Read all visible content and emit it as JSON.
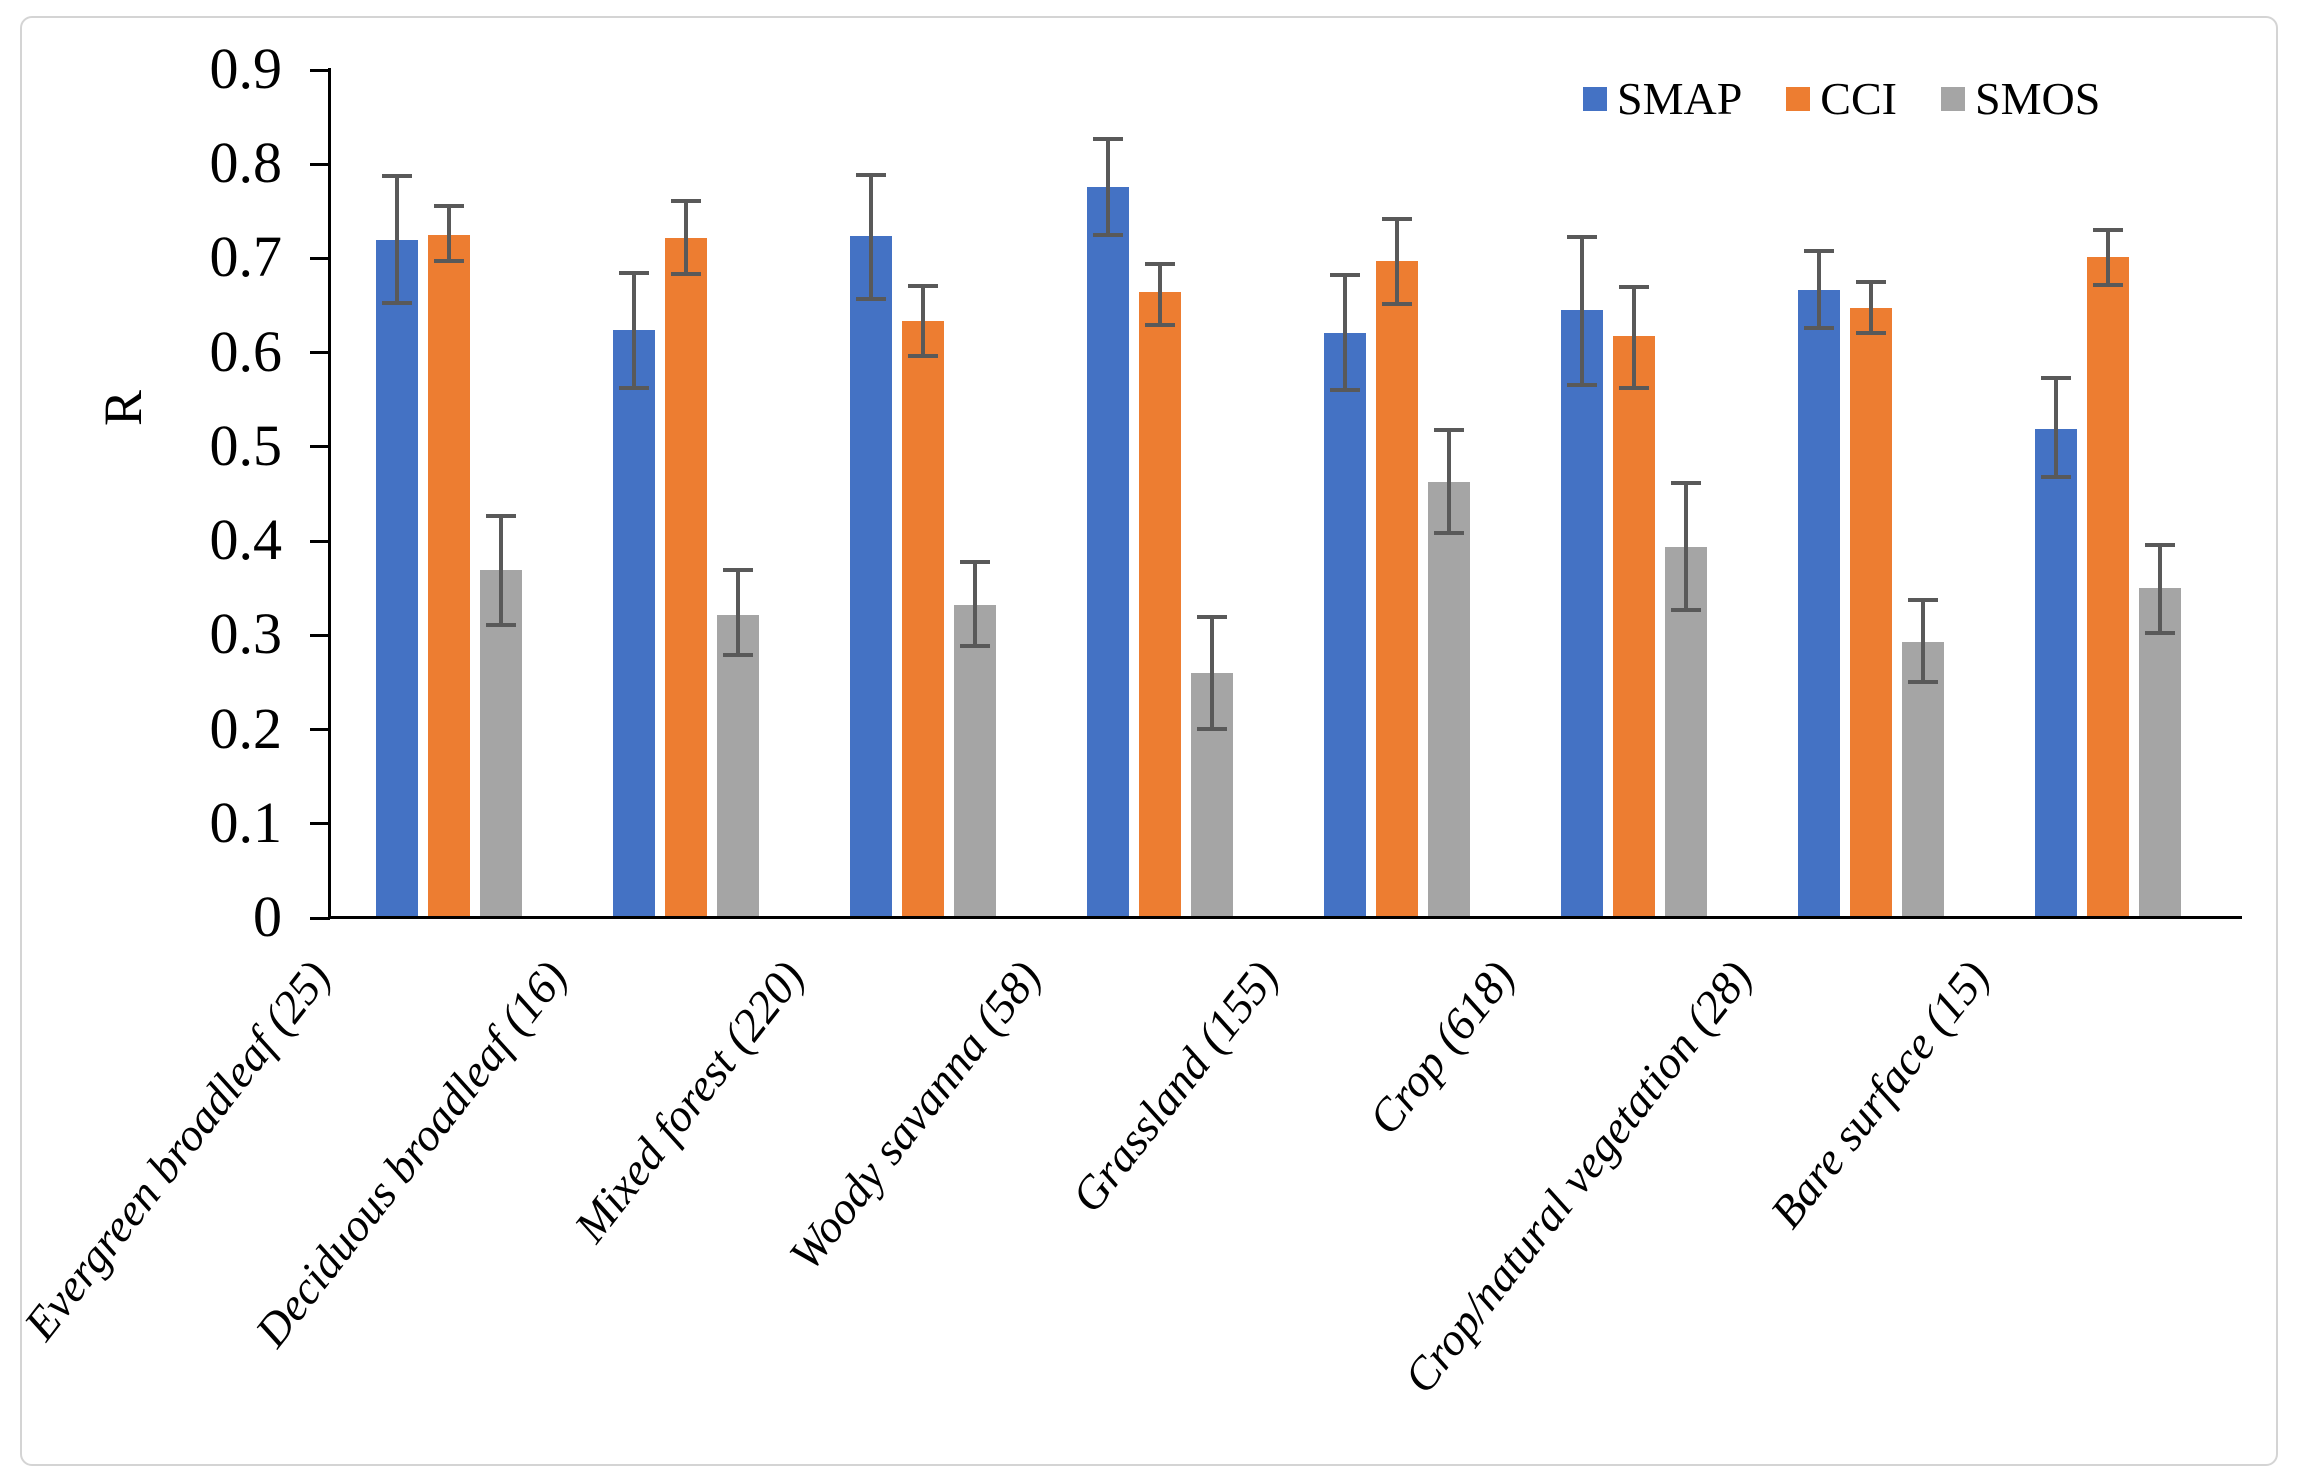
{
  "figure": {
    "background": "#ffffff",
    "border_color": "#d4d4d4",
    "axis_color": "#000000",
    "error_bar_color": "#595959"
  },
  "chart_data": {
    "type": "bar",
    "title": "",
    "xlabel": "",
    "ylabel": "R",
    "ylim": [
      0,
      0.9
    ],
    "ytick_step": 0.1,
    "ytick_labels": [
      "0",
      "0.1",
      "0.2",
      "0.3",
      "0.4",
      "0.5",
      "0.6",
      "0.7",
      "0.8",
      "0.9"
    ],
    "grid": false,
    "legend_position": "top-right",
    "bar_unit": "correlation coefficient R",
    "categories": [
      "Evergreen broadleaf (25)",
      "Deciduous broadleaf (16)",
      "Mixed forest (220)",
      "Woody savanna (58)",
      "Grassland (155)",
      "Crop (618)",
      "Crop/natural vegetation (28)",
      "Bare surface (15)"
    ],
    "series": [
      {
        "name": "SMAP",
        "color": "#4472C4",
        "values": [
          0.72,
          0.624,
          0.724,
          0.776,
          0.621,
          0.645,
          0.667,
          0.519
        ],
        "error_low": [
          0.653,
          0.563,
          0.657,
          0.725,
          0.56,
          0.566,
          0.626,
          0.468
        ],
        "error_high": [
          0.787,
          0.685,
          0.789,
          0.827,
          0.682,
          0.723,
          0.708,
          0.573
        ]
      },
      {
        "name": "CCI",
        "color": "#ED7D31",
        "values": [
          0.725,
          0.722,
          0.634,
          0.664,
          0.697,
          0.618,
          0.647,
          0.702
        ],
        "error_low": [
          0.697,
          0.684,
          0.596,
          0.629,
          0.652,
          0.563,
          0.621,
          0.672
        ],
        "error_high": [
          0.756,
          0.761,
          0.671,
          0.694,
          0.742,
          0.67,
          0.675,
          0.73
        ]
      },
      {
        "name": "SMOS",
        "color": "#A5A5A5",
        "values": [
          0.369,
          0.322,
          0.332,
          0.26,
          0.463,
          0.394,
          0.293,
          0.35
        ],
        "error_low": [
          0.311,
          0.279,
          0.289,
          0.201,
          0.409,
          0.327,
          0.25,
          0.303
        ],
        "error_high": [
          0.427,
          0.369,
          0.378,
          0.319,
          0.518,
          0.462,
          0.337,
          0.396
        ]
      }
    ]
  }
}
